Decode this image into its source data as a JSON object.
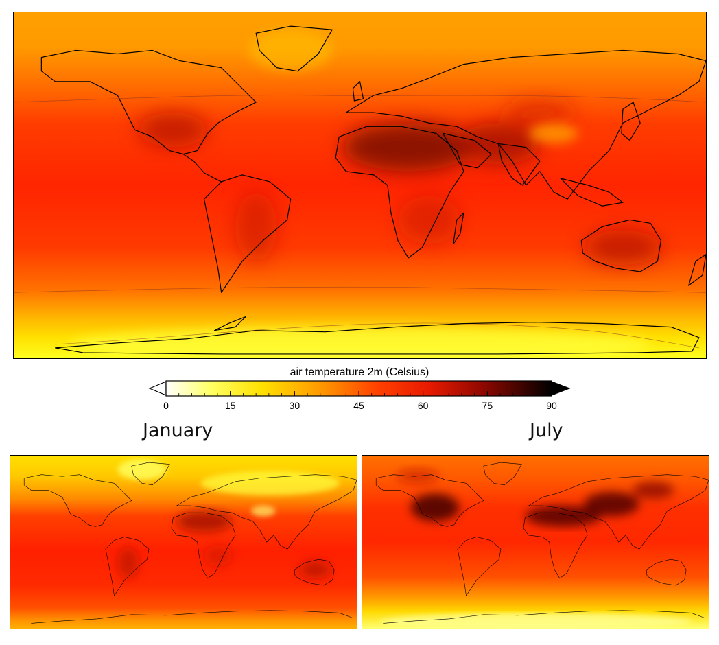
{
  "colorbar": {
    "title": "air temperature 2m (Celsius)",
    "ticks": [
      "0",
      "15",
      "30",
      "45",
      "60",
      "75",
      "90"
    ],
    "min": 0,
    "max": 90,
    "extend": "both",
    "colormap": [
      "#ffffff",
      "#ffff00",
      "#ffa500",
      "#ff4500",
      "#e8200a",
      "#8b0000",
      "#000000"
    ]
  },
  "panels": {
    "main": {
      "label": ""
    },
    "january": {
      "label": "January"
    },
    "july": {
      "label": "July"
    }
  },
  "colors": {
    "background": "#ffffff",
    "coastline": "#000000",
    "hot": "#5a0000",
    "warm": "#ff2a00",
    "cool": "#ff9900",
    "cold": "#ffee33"
  }
}
